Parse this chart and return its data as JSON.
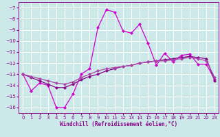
{
  "xlabel": "Windchill (Refroidissement éolien,°C)",
  "x": [
    0,
    1,
    2,
    3,
    4,
    5,
    6,
    7,
    8,
    9,
    10,
    11,
    12,
    13,
    14,
    15,
    16,
    17,
    18,
    19,
    20,
    21,
    22,
    23
  ],
  "line1": [
    -13.0,
    -14.5,
    -13.8,
    -14.0,
    -16.0,
    -16.0,
    -14.8,
    -13.0,
    -12.5,
    -8.8,
    -7.2,
    -7.4,
    -9.1,
    -9.3,
    -8.5,
    -10.2,
    -12.2,
    -11.1,
    -11.9,
    -11.3,
    -11.2,
    -12.1,
    -12.1,
    -13.5
  ],
  "line2": [
    -13.0,
    -13.3,
    -13.6,
    -13.9,
    -14.2,
    -14.2,
    -13.9,
    -13.5,
    -13.2,
    -13.0,
    -12.7,
    -12.5,
    -12.3,
    -12.2,
    -12.0,
    -11.9,
    -11.8,
    -11.7,
    -11.6,
    -11.5,
    -11.4,
    -11.5,
    -11.6,
    -13.6
  ],
  "line3": [
    -13.0,
    -13.2,
    -13.4,
    -13.6,
    -13.8,
    -13.9,
    -13.7,
    -13.3,
    -13.0,
    -12.7,
    -12.5,
    -12.4,
    -12.3,
    -12.2,
    -12.0,
    -11.9,
    -11.8,
    -11.8,
    -11.7,
    -11.6,
    -11.5,
    -11.6,
    -11.8,
    -13.3
  ],
  "bg_color": "#cce8e8",
  "grid_color": "#ffffff",
  "line_color1": "#cc00cc",
  "line_color2": "#880088",
  "line_color3": "#aa44aa",
  "ylim": [
    -16.5,
    -6.5
  ],
  "xlim": [
    -0.5,
    23.5
  ],
  "yticks": [
    -7,
    -8,
    -9,
    -10,
    -11,
    -12,
    -13,
    -14,
    -15,
    -16
  ],
  "xticks": [
    0,
    1,
    2,
    3,
    4,
    5,
    6,
    7,
    8,
    9,
    10,
    11,
    12,
    13,
    14,
    15,
    16,
    17,
    18,
    19,
    20,
    21,
    22,
    23
  ],
  "tick_color": "#880088",
  "spine_color": "#880088",
  "xlabel_color": "#880088",
  "marker": "D",
  "markersize": 2.0,
  "linewidth": 0.9,
  "tick_fontsize": 5.0,
  "xlabel_fontsize": 5.5
}
